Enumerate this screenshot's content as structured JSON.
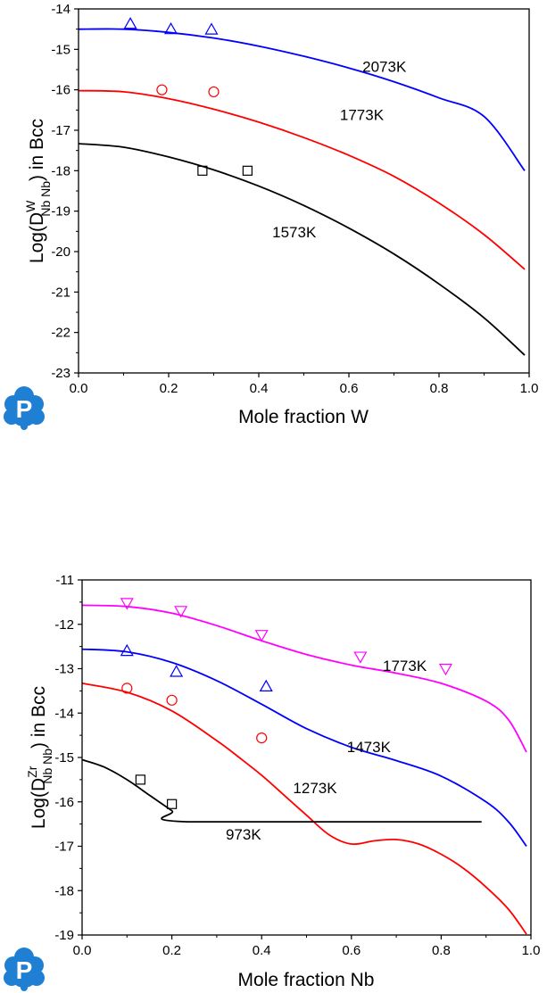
{
  "colors": {
    "blue": "#0000ff",
    "red": "#ff0000",
    "black": "#000000",
    "magenta": "#ff00ff",
    "logo": "#1e7fd3"
  },
  "logo": {
    "letter": "P",
    "icon": "cloud-p-logo"
  },
  "chart_data": [
    {
      "type": "line",
      "title": "",
      "ylabel": {
        "prefix": "Log(D",
        "sup": "W",
        "sub": "Nb Nb",
        "suffix": ") in Bcc"
      },
      "xlabel": "Mole fraction W",
      "xlim": [
        0.0,
        1.0
      ],
      "ylim": [
        -23,
        -14
      ],
      "xticks": [
        0.0,
        0.2,
        0.4,
        0.6,
        0.8,
        1.0
      ],
      "xtick_labels": [
        "0.0",
        "0.2",
        "0.4",
        "0.6",
        "0.8",
        "1.0"
      ],
      "yticks": [
        -23,
        -22,
        -21,
        -20,
        -19,
        -18,
        -17,
        -16,
        -15,
        -14
      ],
      "ytick_labels": [
        "-23",
        "-22",
        "-21",
        "-20",
        "-19",
        "-18",
        "-17",
        "-16",
        "-15",
        "-14"
      ],
      "grid": false,
      "series": [
        {
          "name": "2073K",
          "color": "#0000ff",
          "x": [
            0.0,
            0.1,
            0.2,
            0.3,
            0.4,
            0.5,
            0.6,
            0.7,
            0.8,
            0.9,
            0.99
          ],
          "y": [
            -14.5,
            -14.5,
            -14.58,
            -14.72,
            -14.92,
            -15.17,
            -15.46,
            -15.8,
            -16.2,
            -16.66,
            -18.0
          ]
        },
        {
          "name": "1773K",
          "color": "#ff0000",
          "x": [
            0.0,
            0.1,
            0.2,
            0.3,
            0.4,
            0.5,
            0.6,
            0.7,
            0.8,
            0.9,
            0.99
          ],
          "y": [
            -16.02,
            -16.05,
            -16.22,
            -16.48,
            -16.8,
            -17.18,
            -17.62,
            -18.14,
            -18.8,
            -19.58,
            -20.44
          ]
        },
        {
          "name": "1573K",
          "color": "#000000",
          "x": [
            0.0,
            0.1,
            0.2,
            0.3,
            0.4,
            0.5,
            0.6,
            0.7,
            0.8,
            0.9,
            0.99
          ],
          "y": [
            -17.33,
            -17.42,
            -17.66,
            -17.98,
            -18.38,
            -18.86,
            -19.42,
            -20.06,
            -20.8,
            -21.64,
            -22.56
          ]
        }
      ],
      "markers": [
        {
          "shape": "triangle-up",
          "color": "#0000ff",
          "x": [
            0.115,
            0.205,
            0.295
          ],
          "y": [
            -14.37,
            -14.5,
            -14.51
          ]
        },
        {
          "shape": "circle",
          "color": "#ff0000",
          "x": [
            0.185,
            0.3
          ],
          "y": [
            -16.0,
            -16.05
          ]
        },
        {
          "shape": "square",
          "color": "#000000",
          "x": [
            0.275,
            0.375
          ],
          "y": [
            -18.0,
            -18.0
          ]
        }
      ],
      "annotations": [
        {
          "text": "2073K",
          "x": 0.63,
          "y": -15.55
        },
        {
          "text": "1773K",
          "x": 0.58,
          "y": -16.75
        },
        {
          "text": "1573K",
          "x": 0.43,
          "y": -19.65
        }
      ]
    },
    {
      "type": "line",
      "title": "",
      "ylabel": {
        "prefix": "Log(D",
        "sup": "Zr",
        "sub": "Nb Nb",
        "suffix": ") in Bcc"
      },
      "xlabel": "Mole fraction Nb",
      "xlim": [
        0.0,
        1.0
      ],
      "ylim": [
        -19,
        -11
      ],
      "xticks": [
        0.0,
        0.2,
        0.4,
        0.6,
        0.8,
        1.0
      ],
      "xtick_labels": [
        "0.0",
        "0.2",
        "0.4",
        "0.6",
        "0.8",
        "1.0"
      ],
      "yticks": [
        -19,
        -18,
        -17,
        -16,
        -15,
        -14,
        -13,
        -12,
        -11
      ],
      "ytick_labels": [
        "-19",
        "-18",
        "-17",
        "-16",
        "-15",
        "-14",
        "-13",
        "-12",
        "-11"
      ],
      "grid": false,
      "series": [
        {
          "name": "1773K",
          "color": "#ff00ff",
          "x": [
            0.0,
            0.1,
            0.2,
            0.3,
            0.4,
            0.5,
            0.6,
            0.7,
            0.8,
            0.9,
            0.95,
            0.99
          ],
          "y": [
            -11.57,
            -11.6,
            -11.75,
            -12.03,
            -12.37,
            -12.68,
            -12.92,
            -13.1,
            -13.33,
            -13.73,
            -14.15,
            -14.88
          ]
        },
        {
          "name": "1473K",
          "color": "#0000ff",
          "x": [
            0.0,
            0.1,
            0.2,
            0.3,
            0.4,
            0.5,
            0.6,
            0.7,
            0.8,
            0.9,
            0.95,
            0.99
          ],
          "y": [
            -12.56,
            -12.62,
            -12.86,
            -13.27,
            -13.8,
            -14.35,
            -14.77,
            -15.07,
            -15.42,
            -16.0,
            -16.45,
            -17.0
          ]
        },
        {
          "name": "1273K",
          "color": "#ff0000",
          "x": [
            0.0,
            0.1,
            0.2,
            0.3,
            0.35,
            0.4,
            0.45,
            0.5,
            0.55,
            0.6,
            0.65,
            0.7,
            0.75,
            0.8,
            0.85,
            0.9,
            0.95,
            0.99
          ],
          "y": [
            -13.33,
            -13.53,
            -13.95,
            -14.62,
            -15.0,
            -15.4,
            -15.85,
            -16.3,
            -16.74,
            -16.95,
            -16.88,
            -16.85,
            -16.95,
            -17.18,
            -17.5,
            -17.92,
            -18.42,
            -18.98
          ]
        },
        {
          "name": "973K",
          "color": "#000000",
          "x": [
            0.0,
            0.05,
            0.1,
            0.15,
            0.2,
            0.235,
            0.89
          ],
          "y": [
            -15.05,
            -15.22,
            -15.5,
            -15.85,
            -16.2,
            -16.45,
            -16.45
          ]
        }
      ],
      "markers": [
        {
          "shape": "triangle-down",
          "color": "#ff00ff",
          "x": [
            0.1,
            0.22,
            0.4,
            0.62,
            0.81
          ],
          "y": [
            -11.52,
            -11.7,
            -12.24,
            -12.73,
            -13.0
          ]
        },
        {
          "shape": "triangle-up",
          "color": "#0000ff",
          "x": [
            0.1,
            0.21,
            0.41
          ],
          "y": [
            -12.6,
            -13.07,
            -13.4
          ]
        },
        {
          "shape": "circle",
          "color": "#ff0000",
          "x": [
            0.1,
            0.2,
            0.4
          ],
          "y": [
            -13.44,
            -13.71,
            -14.56
          ]
        },
        {
          "shape": "square",
          "color": "#000000",
          "x": [
            0.13,
            0.2
          ],
          "y": [
            -15.5,
            -16.05
          ]
        }
      ],
      "annotations": [
        {
          "text": "1773K",
          "x": 0.67,
          "y": -13.05
        },
        {
          "text": "1473K",
          "x": 0.59,
          "y": -14.88
        },
        {
          "text": "1273K",
          "x": 0.47,
          "y": -15.8
        },
        {
          "text": "973K",
          "x": 0.32,
          "y": -16.85
        }
      ]
    }
  ]
}
